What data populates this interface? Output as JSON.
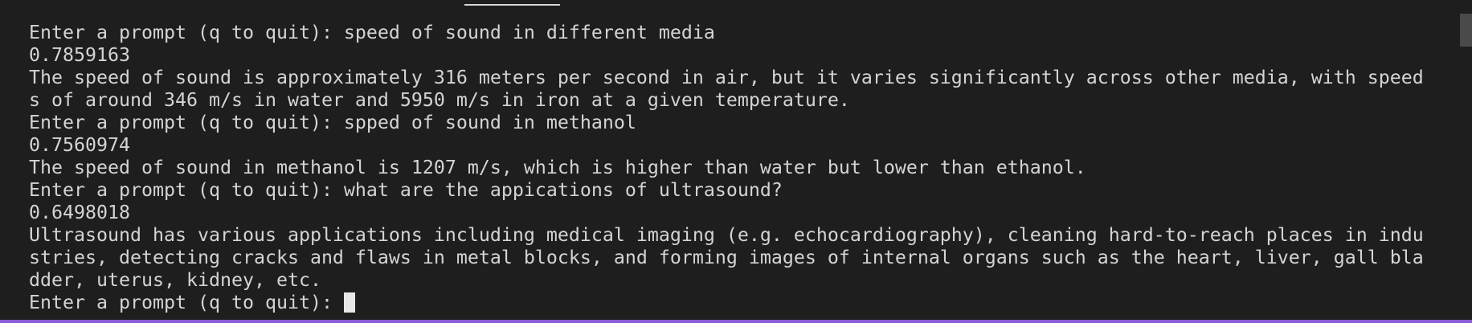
{
  "session": [
    {
      "prompt": "Enter a prompt (q to quit):",
      "input": "speed of sound in different media",
      "score": "0.7859163",
      "response": "The speed of sound is approximately 316 meters per second in air, but it varies significantly across other media, with speeds of around 346 m/s in water and 5950 m/s in iron at a given temperature."
    },
    {
      "prompt": "Enter a prompt (q to quit):",
      "input": "spped of sound in methanol",
      "score": "0.7560974",
      "response": "The speed of sound in methanol is 1207 m/s, which is higher than water but lower than ethanol."
    },
    {
      "prompt": "Enter a prompt (q to quit):",
      "input": "what are the appications of ultrasound?",
      "score": "0.6498018",
      "response": "Ultrasound has various applications including medical imaging (e.g. echocardiography), cleaning hard-to-reach places in industries, detecting cracks and flaws in metal blocks, and forming images of internal organs such as the heart, liver, gall bladder, uterus, kidney, etc."
    }
  ],
  "final_prompt": "Enter a prompt (q to quit):"
}
